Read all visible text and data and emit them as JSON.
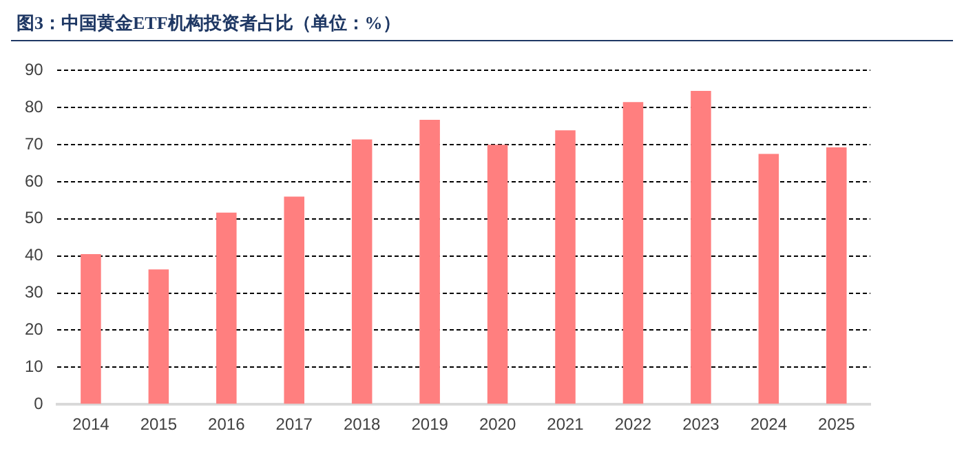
{
  "chart_data": {
    "type": "bar",
    "title": "图3：中国黄金ETF机构投资者占比（单位：%）",
    "categories": [
      "2014",
      "2015",
      "2016",
      "2017",
      "2018",
      "2019",
      "2020",
      "2021",
      "2022",
      "2023",
      "2024",
      "2025"
    ],
    "values": [
      40.5,
      36.4,
      51.7,
      56,
      71.4,
      76.7,
      70,
      73.9,
      81.5,
      84.5,
      67.5,
      69.3
    ],
    "color": "#ff7f7f",
    "ylim": [
      0,
      90
    ],
    "yticks": [
      0,
      10,
      20,
      30,
      40,
      50,
      60,
      70,
      80,
      90
    ],
    "grid": "y",
    "legend": false
  }
}
